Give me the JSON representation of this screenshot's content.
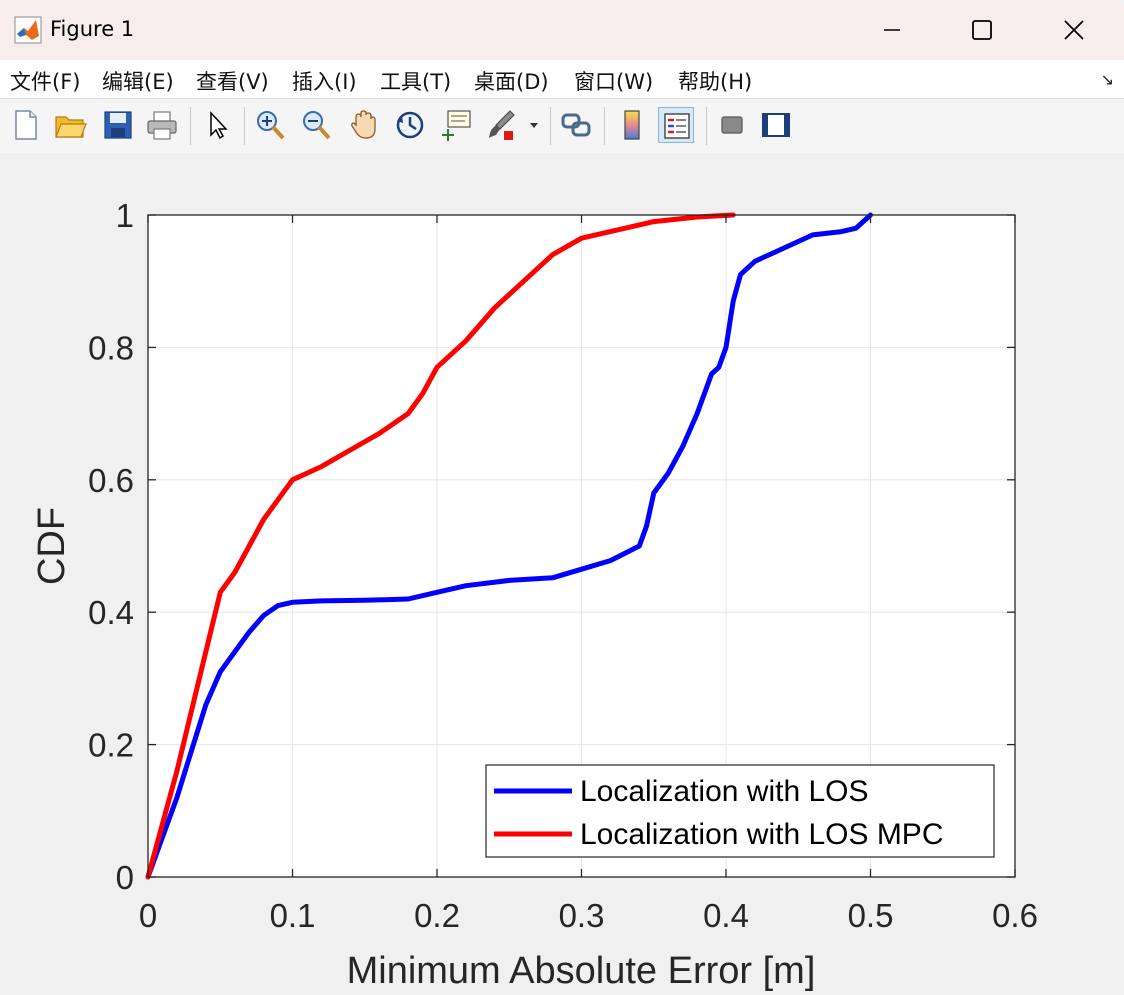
{
  "window": {
    "title": "Figure 1"
  },
  "menu": {
    "items": [
      "文件(F)",
      "编辑(E)",
      "查看(V)",
      "插入(I)",
      "工具(T)",
      "桌面(D)",
      "窗口(W)",
      "帮助(H)"
    ]
  },
  "toolbar": {
    "buttons": [
      "new-figure-icon",
      "open-folder-icon",
      "save-icon",
      "print-icon",
      "pointer-icon",
      "zoom-in-icon",
      "zoom-out-icon",
      "pan-hand-icon",
      "rotate-3d-icon",
      "data-cursor-icon",
      "brush-icon",
      "link-icon",
      "colorbar-icon",
      "legend-icon",
      "hide-plot-tools-icon",
      "show-plot-tools-icon"
    ]
  },
  "colors": {
    "los": "#0000ff",
    "mpc": "#ff0000",
    "grid": "#e6e6e6",
    "axes": "#262626"
  },
  "chart_data": {
    "type": "line",
    "xlabel": "Minimum Absolute Error [m]",
    "ylabel": "CDF",
    "xlim": [
      0,
      0.6
    ],
    "ylim": [
      0,
      1
    ],
    "xticks": [
      "0",
      "0.1",
      "0.2",
      "0.3",
      "0.4",
      "0.5",
      "0.6"
    ],
    "yticks": [
      "0",
      "0.2",
      "0.4",
      "0.6",
      "0.8",
      "1"
    ],
    "grid": true,
    "legend_position": "bottom-right",
    "series": [
      {
        "name": "Localization with LOS",
        "color": "#0000ff",
        "points": [
          [
            0,
            0
          ],
          [
            0.01,
            0.06
          ],
          [
            0.02,
            0.12
          ],
          [
            0.03,
            0.19
          ],
          [
            0.04,
            0.26
          ],
          [
            0.05,
            0.31
          ],
          [
            0.06,
            0.34
          ],
          [
            0.07,
            0.37
          ],
          [
            0.08,
            0.395
          ],
          [
            0.09,
            0.41
          ],
          [
            0.1,
            0.415
          ],
          [
            0.12,
            0.417
          ],
          [
            0.15,
            0.418
          ],
          [
            0.18,
            0.42
          ],
          [
            0.2,
            0.43
          ],
          [
            0.22,
            0.44
          ],
          [
            0.25,
            0.448
          ],
          [
            0.28,
            0.452
          ],
          [
            0.3,
            0.465
          ],
          [
            0.32,
            0.478
          ],
          [
            0.34,
            0.5
          ],
          [
            0.345,
            0.53
          ],
          [
            0.35,
            0.58
          ],
          [
            0.36,
            0.61
          ],
          [
            0.37,
            0.65
          ],
          [
            0.38,
            0.7
          ],
          [
            0.39,
            0.76
          ],
          [
            0.395,
            0.77
          ],
          [
            0.4,
            0.8
          ],
          [
            0.405,
            0.87
          ],
          [
            0.41,
            0.91
          ],
          [
            0.42,
            0.93
          ],
          [
            0.44,
            0.95
          ],
          [
            0.46,
            0.97
          ],
          [
            0.48,
            0.975
          ],
          [
            0.49,
            0.98
          ],
          [
            0.5,
            1
          ]
        ]
      },
      {
        "name": "Localization with LOS MPC",
        "color": "#ff0000",
        "points": [
          [
            0,
            0
          ],
          [
            0.01,
            0.08
          ],
          [
            0.02,
            0.16
          ],
          [
            0.03,
            0.25
          ],
          [
            0.04,
            0.34
          ],
          [
            0.05,
            0.43
          ],
          [
            0.06,
            0.46
          ],
          [
            0.07,
            0.5
          ],
          [
            0.08,
            0.54
          ],
          [
            0.09,
            0.57
          ],
          [
            0.1,
            0.6
          ],
          [
            0.12,
            0.62
          ],
          [
            0.14,
            0.645
          ],
          [
            0.16,
            0.67
          ],
          [
            0.18,
            0.7
          ],
          [
            0.19,
            0.73
          ],
          [
            0.2,
            0.77
          ],
          [
            0.22,
            0.81
          ],
          [
            0.24,
            0.86
          ],
          [
            0.26,
            0.9
          ],
          [
            0.28,
            0.94
          ],
          [
            0.3,
            0.965
          ],
          [
            0.32,
            0.975
          ],
          [
            0.35,
            0.99
          ],
          [
            0.38,
            0.997
          ],
          [
            0.405,
            1
          ]
        ]
      }
    ]
  }
}
